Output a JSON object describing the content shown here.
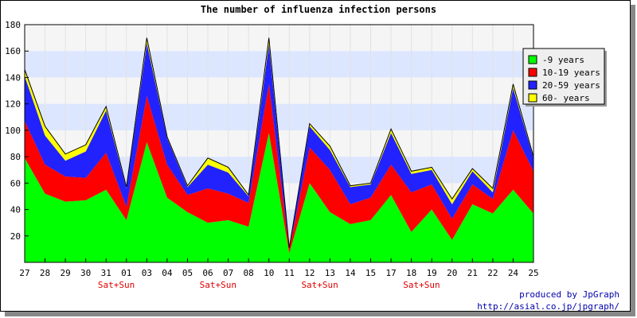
{
  "chart_data": {
    "type": "area",
    "stacked": true,
    "title": "The number of influenza infection persons",
    "categories": [
      "27",
      "28",
      "29",
      "30",
      "31",
      "01",
      "03",
      "04",
      "05",
      "06",
      "07",
      "08",
      "10",
      "11",
      "12",
      "13",
      "14",
      "15",
      "17",
      "18",
      "19",
      "20",
      "21",
      "22",
      "24",
      "25"
    ],
    "weekend_label": "Sat+Sun",
    "weekend_indices": [
      4,
      9,
      14,
      19
    ],
    "ylim": [
      0,
      180
    ],
    "yticks": [
      20,
      40,
      60,
      80,
      100,
      120,
      140,
      160,
      180
    ],
    "grid": true,
    "legend_position": "right-top",
    "series": [
      {
        "name": "-9 years",
        "color": "#00ff00",
        "values": [
          79,
          52,
          46,
          47,
          55,
          32,
          91,
          49,
          38,
          30,
          32,
          27,
          98,
          7,
          60,
          38,
          29,
          32,
          51,
          23,
          40,
          17,
          44,
          37,
          55,
          37
        ]
      },
      {
        "name": "10-19 years",
        "color": "#ff0000",
        "values": [
          28,
          22,
          19,
          17,
          28,
          10,
          35,
          25,
          13,
          26,
          20,
          18,
          37,
          3,
          27,
          32,
          15,
          17,
          23,
          30,
          19,
          16,
          15,
          11,
          45,
          32
        ]
      },
      {
        "name": "20-59 years",
        "color": "#2222ff",
        "values": [
          34,
          22,
          12,
          20,
          32,
          14,
          40,
          20,
          6,
          18,
          16,
          5,
          30,
          1,
          16,
          15,
          13,
          10,
          24,
          14,
          11,
          11,
          10,
          5,
          32,
          10
        ]
      },
      {
        "name": "60- years",
        "color": "#ffff00",
        "values": [
          5,
          7,
          5,
          5,
          3,
          1,
          4,
          1,
          1,
          5,
          4,
          1,
          5,
          0,
          2,
          3,
          1,
          1,
          3,
          2,
          2,
          4,
          2,
          3,
          3,
          1
        ]
      }
    ]
  },
  "credit": {
    "line1": "produced by JpGraph",
    "line2": "http://asial.co.jp/jpgraph/"
  }
}
